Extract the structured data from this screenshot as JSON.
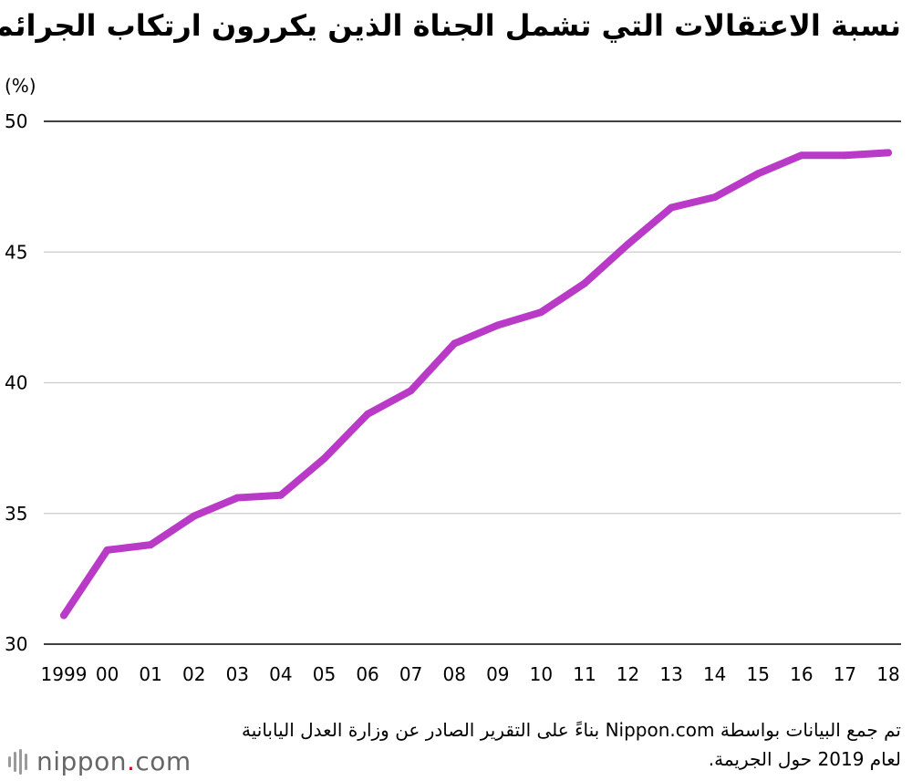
{
  "title": "نسبة الاعتقالات التي تشمل الجناة الذين يكررون ارتكاب الجرائم",
  "source_note": "تم جمع البيانات بواسطة Nippon.com بناءً على التقرير الصادر عن وزارة العدل اليابانية لعام 2019 حول الجريمة.",
  "logo": {
    "name": "nippon",
    "dot": ".",
    "suffix": "com"
  },
  "colors": {
    "line": "#b93ac7",
    "grid": "#cccccc",
    "axis": "#000000"
  },
  "chart_data": {
    "type": "line",
    "title": "نسبة الاعتقالات التي تشمل الجناة الذين يكررون ارتكاب الجرائم",
    "ylabel": "(%)",
    "xlabel": "",
    "ylim": [
      30,
      50
    ],
    "yticks": [
      30,
      35,
      40,
      45,
      50
    ],
    "grid": true,
    "categories": [
      "1999",
      "00",
      "01",
      "02",
      "03",
      "04",
      "05",
      "06",
      "07",
      "08",
      "09",
      "10",
      "11",
      "12",
      "13",
      "14",
      "15",
      "16",
      "17",
      "18"
    ],
    "series": [
      {
        "values": [
          31.1,
          33.6,
          33.8,
          34.9,
          35.6,
          35.7,
          37.1,
          38.8,
          39.7,
          41.5,
          42.2,
          42.7,
          43.8,
          45.3,
          46.7,
          47.1,
          48.0,
          48.7,
          48.7,
          48.8
        ]
      }
    ]
  }
}
